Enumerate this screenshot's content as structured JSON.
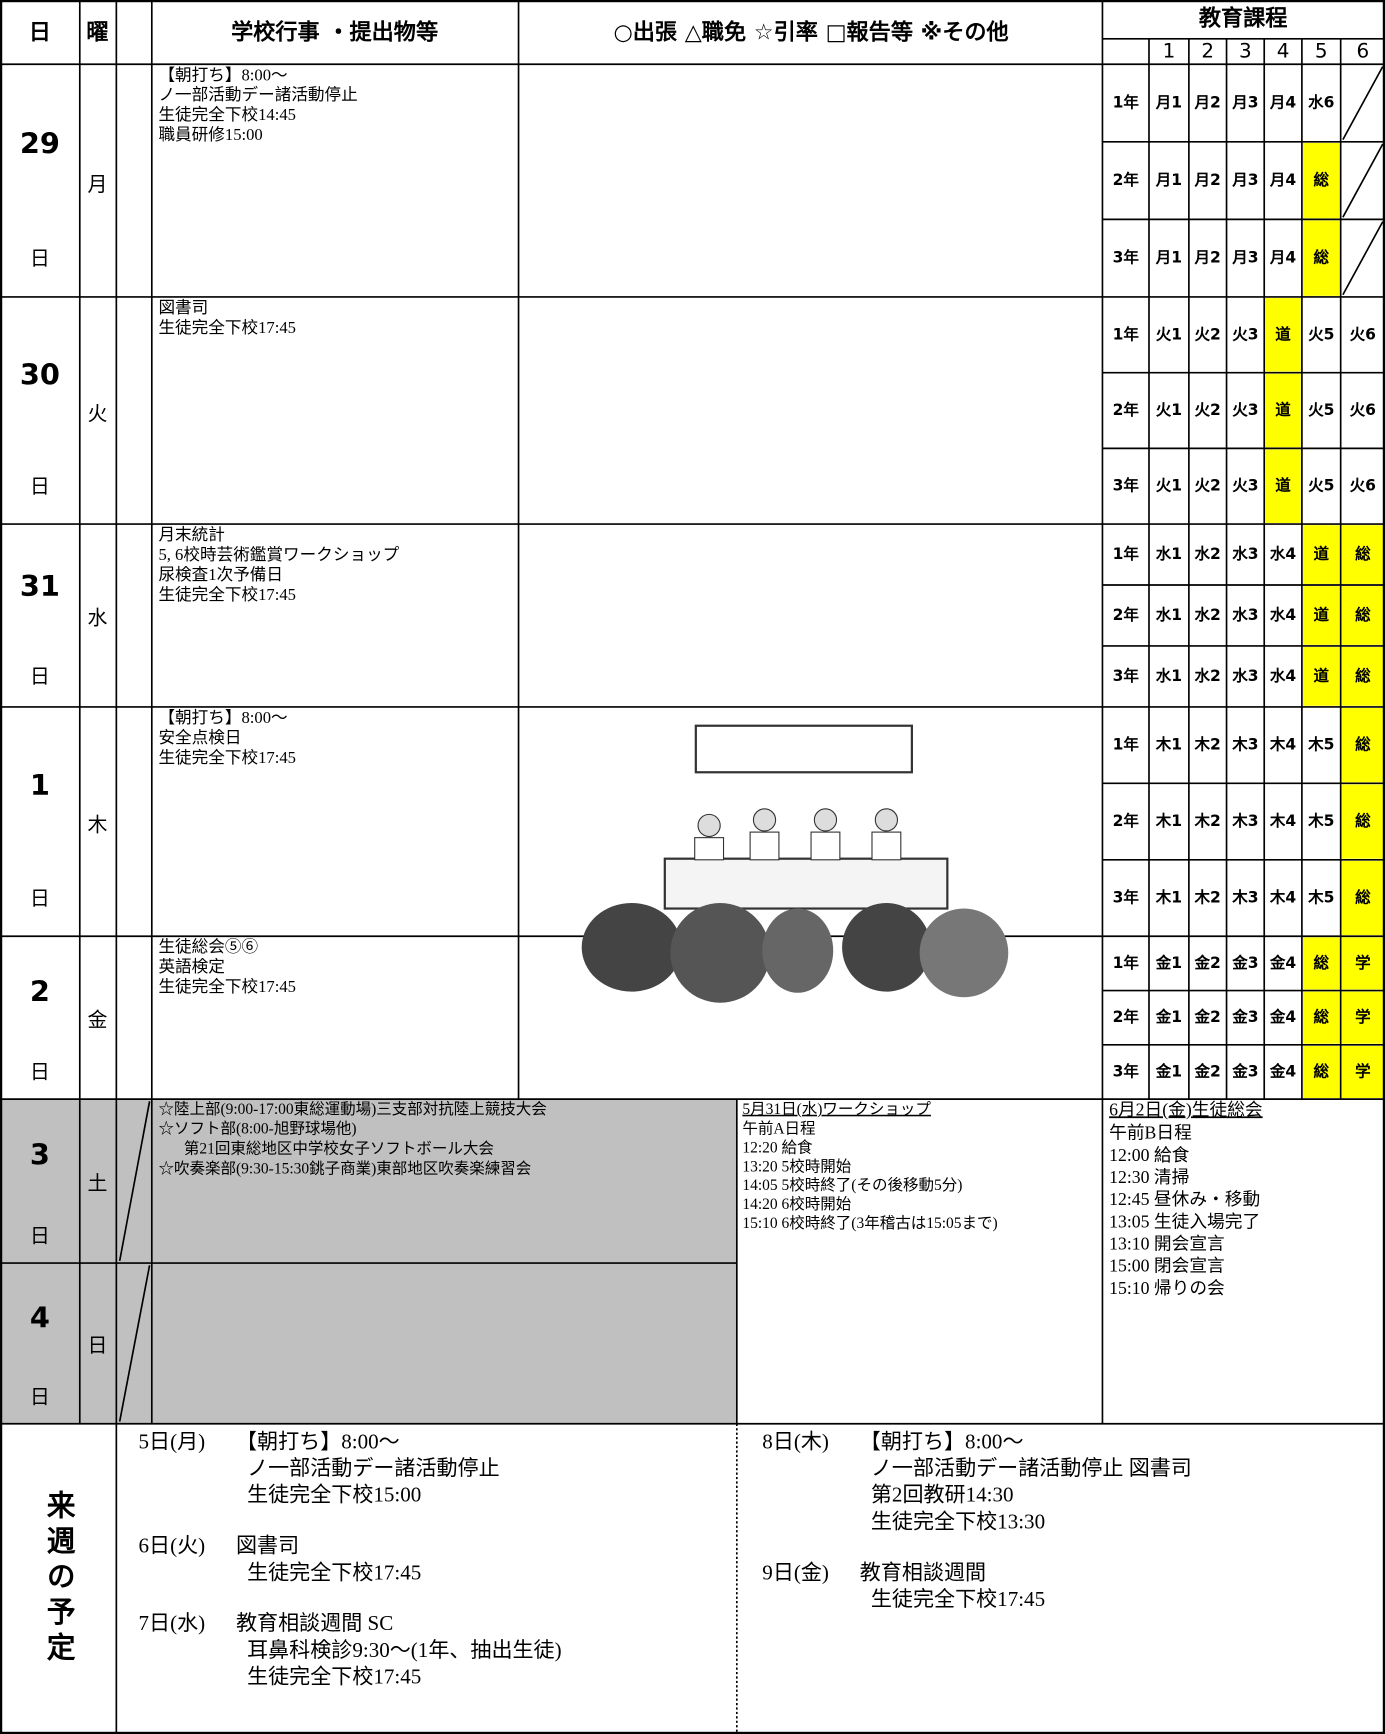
{
  "header": {
    "day": "日",
    "weekday": "曜",
    "events": "学校行事 ・提出物等",
    "notes": "○出張 △職免 ☆引率 □報告等 ※その他",
    "curriculum": "教育課程",
    "periods": [
      1,
      2,
      3,
      4,
      5,
      6
    ]
  },
  "highlight_color": "#ffff00",
  "days": [
    {
      "date": "29",
      "weekday": "月",
      "day_suffix": "日",
      "events": [
        "【朝打ち】8:00～",
        "ノ一部活動デー諸活動停止",
        "生徒完全下校14:45",
        "職員研修15:00"
      ],
      "curriculum": [
        {
          "grade": "1年",
          "periods": [
            "月1",
            "月2",
            "月3",
            "月4",
            "水6",
            null
          ],
          "highlighted": []
        },
        {
          "grade": "2年",
          "periods": [
            "月1",
            "月2",
            "月3",
            "月4",
            "総",
            null
          ],
          "highlighted": [
            4
          ]
        },
        {
          "grade": "3年",
          "periods": [
            "月1",
            "月2",
            "月3",
            "月4",
            "総",
            null
          ],
          "highlighted": [
            4
          ]
        }
      ]
    },
    {
      "date": "30",
      "weekday": "火",
      "day_suffix": "日",
      "events": [
        "図書司",
        "生徒完全下校17:45"
      ],
      "curriculum": [
        {
          "grade": "1年",
          "periods": [
            "火1",
            "火2",
            "火3",
            "道",
            "火5",
            "火6"
          ],
          "highlighted": [
            3
          ]
        },
        {
          "grade": "2年",
          "periods": [
            "火1",
            "火2",
            "火3",
            "道",
            "火5",
            "火6"
          ],
          "highlighted": [
            3
          ]
        },
        {
          "grade": "3年",
          "periods": [
            "火1",
            "火2",
            "火3",
            "道",
            "火5",
            "火6"
          ],
          "highlighted": [
            3
          ]
        }
      ]
    },
    {
      "date": "31",
      "weekday": "水",
      "day_suffix": "日",
      "events": [
        "月末統計",
        "5, 6校時芸術鑑賞ワークショップ",
        "尿検査1次予備日",
        "生徒完全下校17:45"
      ],
      "curriculum": [
        {
          "grade": "1年",
          "periods": [
            "水1",
            "水2",
            "水3",
            "水4",
            "道",
            "総"
          ],
          "highlighted": [
            4,
            5
          ]
        },
        {
          "grade": "2年",
          "periods": [
            "水1",
            "水2",
            "水3",
            "水4",
            "道",
            "総"
          ],
          "highlighted": [
            4,
            5
          ]
        },
        {
          "grade": "3年",
          "periods": [
            "水1",
            "水2",
            "水3",
            "水4",
            "道",
            "総"
          ],
          "highlighted": [
            4,
            5
          ]
        }
      ]
    },
    {
      "date": "1",
      "weekday": "木",
      "day_suffix": "日",
      "events": [
        "【朝打ち】8:00～",
        "安全点検日",
        "生徒完全下校17:45"
      ],
      "curriculum": [
        {
          "grade": "1年",
          "periods": [
            "木1",
            "木2",
            "木3",
            "木4",
            "木5",
            "総"
          ],
          "highlighted": [
            5
          ]
        },
        {
          "grade": "2年",
          "periods": [
            "木1",
            "木2",
            "木3",
            "木4",
            "木5",
            "総"
          ],
          "highlighted": [
            5
          ]
        },
        {
          "grade": "3年",
          "periods": [
            "木1",
            "木2",
            "木3",
            "木4",
            "木5",
            "総"
          ],
          "highlighted": [
            5
          ]
        }
      ]
    },
    {
      "date": "2",
      "weekday": "金",
      "day_suffix": "日",
      "events": [
        "生徒総会⑤⑥",
        "英語検定",
        "生徒完全下校17:45"
      ],
      "curriculum": [
        {
          "grade": "1年",
          "periods": [
            "金1",
            "金2",
            "金3",
            "金4",
            "総",
            "学"
          ],
          "highlighted": [
            4,
            5
          ]
        },
        {
          "grade": "2年",
          "periods": [
            "金1",
            "金2",
            "金3",
            "金4",
            "総",
            "学"
          ],
          "highlighted": [
            4,
            5
          ]
        },
        {
          "grade": "3年",
          "periods": [
            "金1",
            "金2",
            "金3",
            "金4",
            "総",
            "学"
          ],
          "highlighted": [
            4,
            5
          ]
        }
      ]
    }
  ],
  "weekend_days": [
    {
      "date": "3",
      "weekday": "土",
      "day_suffix": "日"
    },
    {
      "date": "4",
      "weekday": "日",
      "day_suffix": "日"
    }
  ],
  "weekend_events": [
    "☆陸上部(9:00-17:00東総運動場)三支部対抗陸上競技大会",
    "☆ソフト部(8:00-旭野球場他)",
    "第21回東総地区中学校女子ソフトボール大会",
    "☆吹奏楽部(9:30-15:30銚子商業)東部地区吹奏楽練習会"
  ],
  "workshop": {
    "title": "5月31日(水)ワークショップ",
    "lines": [
      "午前A日程",
      "12:20 給食",
      "13:20 5校時開始",
      "14:05 5校時終了(その後移動5分)",
      "14:20 6校時開始",
      "15:10 6校時終了(3年稽古は15:05まで)"
    ]
  },
  "assembly": {
    "title": "6月2日(金)生徒総会",
    "lines": [
      "午前B日程",
      "12:00 給食",
      "12:30 清掃",
      "12:45 昼休み・移動",
      "13:05 生徒入場完了",
      "13:10 開会宣言",
      "15:00 閉会宣言",
      "15:10 帰りの会"
    ]
  },
  "next_week": {
    "label": "来週の予定",
    "columns": [
      [
        {
          "day": "5日(月)",
          "lines": [
            "【朝打ち】8:00～",
            "ノ一部活動デー諸活動停止",
            "生徒完全下校15:00"
          ]
        },
        {
          "day": "6日(火)",
          "lines": [
            "図書司",
            "生徒完全下校17:45"
          ]
        },
        {
          "day": "7日(水)",
          "lines": [
            "教育相談週間 SC",
            "耳鼻科検診9:30～(1年、抽出生徒)",
            "生徒完全下校17:45"
          ]
        }
      ],
      [
        {
          "day": "8日(木)",
          "lines": [
            "【朝打ち】8:00～",
            "ノ一部活動デー諸活動停止 図書司",
            "第2回教研14:30",
            "生徒完全下校13:30"
          ]
        },
        {
          "day": "9日(金)",
          "lines": [
            "教育相談週間",
            "生徒完全下校17:45"
          ]
        }
      ]
    ]
  }
}
